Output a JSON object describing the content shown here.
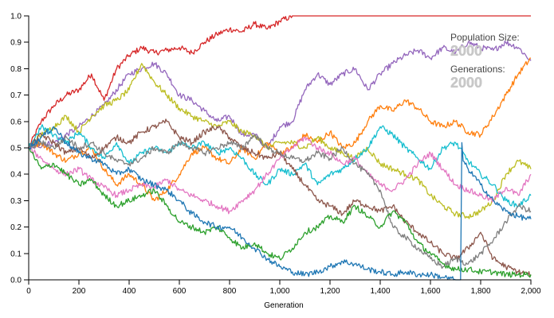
{
  "chart_data": {
    "type": "line",
    "title": "",
    "xlabel": "Generation",
    "ylabel": "",
    "xlim": [
      0,
      2000
    ],
    "ylim": [
      0,
      1
    ],
    "x_ticks": [
      0,
      200,
      400,
      600,
      800,
      1000,
      1200,
      1400,
      1600,
      1800,
      2000
    ],
    "x_tick_labels": [
      "0",
      "200",
      "400",
      "600",
      "800",
      "1,000",
      "1,200",
      "1,400",
      "1,600",
      "1,800",
      "2,000"
    ],
    "y_ticks": [
      0,
      0.1,
      0.2,
      0.3,
      0.4,
      0.5,
      0.6,
      0.7,
      0.8,
      0.9,
      1.0
    ],
    "y_tick_labels": [
      "0.0",
      "0.1",
      "0.2",
      "0.3",
      "0.4",
      "0.5",
      "0.6",
      "0.7",
      "0.8",
      "0.9",
      "1.0"
    ],
    "grid": false,
    "series": [
      {
        "color": "#d62728",
        "x": [
          0,
          50,
          100,
          150,
          200,
          250,
          300,
          350,
          400,
          450,
          500,
          550,
          600,
          650,
          700,
          750,
          800,
          850,
          900,
          950,
          1000,
          1050,
          1100,
          1500,
          2000
        ],
        "values": [
          0.5,
          0.6,
          0.66,
          0.7,
          0.72,
          0.78,
          0.68,
          0.8,
          0.85,
          0.88,
          0.86,
          0.87,
          0.88,
          0.86,
          0.9,
          0.93,
          0.95,
          0.94,
          0.97,
          0.95,
          0.98,
          1.0,
          1.0,
          1.0,
          1.0
        ]
      },
      {
        "color": "#9467bd",
        "x": [
          0,
          100,
          200,
          300,
          400,
          450,
          500,
          550,
          600,
          650,
          700,
          750,
          800,
          850,
          900,
          950,
          1000,
          1050,
          1100,
          1150,
          1200,
          1250,
          1300,
          1350,
          1400,
          1450,
          1500,
          1550,
          1600,
          1650,
          1700,
          1750,
          1800,
          1850,
          1900,
          1950,
          2000
        ],
        "values": [
          0.5,
          0.52,
          0.58,
          0.66,
          0.78,
          0.8,
          0.82,
          0.78,
          0.7,
          0.68,
          0.64,
          0.6,
          0.62,
          0.55,
          0.55,
          0.5,
          0.58,
          0.6,
          0.72,
          0.78,
          0.74,
          0.78,
          0.8,
          0.72,
          0.78,
          0.82,
          0.85,
          0.87,
          0.84,
          0.88,
          0.86,
          0.9,
          0.88,
          0.87,
          0.9,
          0.88,
          0.83
        ]
      },
      {
        "color": "#ff7f0e",
        "x": [
          0,
          50,
          100,
          150,
          200,
          250,
          300,
          350,
          400,
          450,
          500,
          550,
          600,
          650,
          700,
          750,
          800,
          850,
          900,
          950,
          1000,
          1050,
          1100,
          1150,
          1200,
          1250,
          1300,
          1350,
          1400,
          1450,
          1500,
          1550,
          1600,
          1650,
          1700,
          1750,
          1800,
          1850,
          1900,
          1950,
          2000
        ],
        "values": [
          0.5,
          0.52,
          0.48,
          0.45,
          0.48,
          0.5,
          0.42,
          0.36,
          0.4,
          0.36,
          0.3,
          0.34,
          0.4,
          0.48,
          0.5,
          0.46,
          0.44,
          0.5,
          0.46,
          0.52,
          0.48,
          0.5,
          0.55,
          0.52,
          0.56,
          0.5,
          0.52,
          0.6,
          0.66,
          0.64,
          0.68,
          0.65,
          0.6,
          0.58,
          0.6,
          0.56,
          0.55,
          0.62,
          0.7,
          0.78,
          0.84
        ]
      },
      {
        "color": "#bcbd22",
        "x": [
          0,
          50,
          100,
          150,
          200,
          250,
          300,
          350,
          400,
          450,
          500,
          550,
          600,
          650,
          700,
          750,
          800,
          850,
          900,
          950,
          1000,
          1050,
          1100,
          1150,
          1200,
          1250,
          1300,
          1350,
          1400,
          1450,
          1500,
          1550,
          1600,
          1650,
          1700,
          1750,
          1800,
          1850,
          1900,
          1950,
          2000
        ],
        "values": [
          0.5,
          0.55,
          0.58,
          0.62,
          0.56,
          0.62,
          0.66,
          0.68,
          0.72,
          0.82,
          0.75,
          0.7,
          0.65,
          0.62,
          0.6,
          0.58,
          0.6,
          0.56,
          0.55,
          0.5,
          0.52,
          0.52,
          0.5,
          0.54,
          0.5,
          0.48,
          0.46,
          0.5,
          0.44,
          0.42,
          0.4,
          0.38,
          0.32,
          0.28,
          0.25,
          0.24,
          0.26,
          0.3,
          0.4,
          0.45,
          0.42
        ]
      },
      {
        "color": "#17becf",
        "x": [
          0,
          50,
          100,
          150,
          200,
          250,
          300,
          350,
          400,
          450,
          500,
          550,
          600,
          650,
          700,
          750,
          800,
          850,
          900,
          950,
          1000,
          1050,
          1100,
          1150,
          1200,
          1250,
          1300,
          1350,
          1400,
          1450,
          1500,
          1550,
          1600,
          1650,
          1700,
          1750,
          1800,
          1850,
          1900,
          1950,
          2000
        ],
        "values": [
          0.5,
          0.58,
          0.55,
          0.52,
          0.56,
          0.5,
          0.46,
          0.52,
          0.44,
          0.48,
          0.5,
          0.48,
          0.52,
          0.5,
          0.52,
          0.48,
          0.5,
          0.46,
          0.4,
          0.36,
          0.42,
          0.4,
          0.44,
          0.36,
          0.4,
          0.42,
          0.46,
          0.5,
          0.58,
          0.55,
          0.5,
          0.46,
          0.42,
          0.5,
          0.52,
          0.45,
          0.4,
          0.36,
          0.3,
          0.28,
          0.32
        ]
      },
      {
        "color": "#8c564b",
        "x": [
          0,
          50,
          100,
          150,
          200,
          250,
          300,
          350,
          400,
          450,
          500,
          550,
          600,
          650,
          700,
          750,
          800,
          850,
          900,
          950,
          1000,
          1050,
          1100,
          1150,
          1200,
          1250,
          1300,
          1350,
          1400,
          1450,
          1500,
          1550,
          1600,
          1650,
          1700,
          1750,
          1800,
          1850,
          1900,
          1950,
          2000
        ],
        "values": [
          0.5,
          0.55,
          0.52,
          0.48,
          0.5,
          0.46,
          0.5,
          0.54,
          0.52,
          0.56,
          0.58,
          0.6,
          0.54,
          0.52,
          0.56,
          0.58,
          0.54,
          0.5,
          0.48,
          0.46,
          0.48,
          0.42,
          0.36,
          0.3,
          0.28,
          0.25,
          0.3,
          0.28,
          0.26,
          0.28,
          0.22,
          0.18,
          0.14,
          0.1,
          0.08,
          0.12,
          0.18,
          0.08,
          0.05,
          0.03,
          0.02
        ]
      },
      {
        "color": "#e377c2",
        "x": [
          0,
          50,
          100,
          150,
          200,
          250,
          300,
          350,
          400,
          450,
          500,
          550,
          600,
          650,
          700,
          750,
          800,
          850,
          900,
          950,
          1000,
          1050,
          1100,
          1150,
          1200,
          1250,
          1300,
          1350,
          1400,
          1450,
          1500,
          1550,
          1600,
          1650,
          1700,
          1750,
          1800,
          1850,
          1900,
          1950,
          2000
        ],
        "values": [
          0.5,
          0.46,
          0.42,
          0.4,
          0.42,
          0.38,
          0.35,
          0.32,
          0.34,
          0.36,
          0.35,
          0.38,
          0.34,
          0.32,
          0.3,
          0.28,
          0.26,
          0.3,
          0.34,
          0.4,
          0.46,
          0.5,
          0.54,
          0.5,
          0.48,
          0.44,
          0.46,
          0.4,
          0.36,
          0.34,
          0.38,
          0.44,
          0.48,
          0.42,
          0.36,
          0.34,
          0.32,
          0.3,
          0.35,
          0.32,
          0.4
        ]
      },
      {
        "color": "#7f7f7f",
        "x": [
          0,
          50,
          100,
          150,
          200,
          250,
          300,
          350,
          400,
          450,
          500,
          550,
          600,
          650,
          700,
          750,
          800,
          850,
          900,
          950,
          1000,
          1050,
          1100,
          1150,
          1200,
          1250,
          1300,
          1350,
          1400,
          1450,
          1500,
          1550,
          1600,
          1650,
          1700,
          1750,
          1800,
          1850,
          1900,
          1950,
          2000
        ],
        "values": [
          0.5,
          0.52,
          0.5,
          0.54,
          0.5,
          0.52,
          0.48,
          0.45,
          0.44,
          0.46,
          0.5,
          0.48,
          0.52,
          0.5,
          0.48,
          0.5,
          0.52,
          0.5,
          0.55,
          0.5,
          0.48,
          0.46,
          0.45,
          0.48,
          0.46,
          0.5,
          0.44,
          0.4,
          0.34,
          0.2,
          0.16,
          0.12,
          0.08,
          0.05,
          0.08,
          0.06,
          0.1,
          0.15,
          0.22,
          0.28,
          0.26
        ]
      },
      {
        "color": "#2ca02c",
        "x": [
          0,
          50,
          100,
          150,
          200,
          250,
          300,
          350,
          400,
          450,
          500,
          550,
          600,
          650,
          700,
          750,
          800,
          850,
          900,
          950,
          1000,
          1050,
          1100,
          1150,
          1200,
          1250,
          1300,
          1350,
          1400,
          1450,
          1500,
          1550,
          1600,
          1650,
          1700,
          1750,
          1800,
          1850,
          1900,
          1950,
          2000
        ],
        "values": [
          0.5,
          0.42,
          0.44,
          0.4,
          0.36,
          0.38,
          0.32,
          0.28,
          0.3,
          0.32,
          0.34,
          0.28,
          0.22,
          0.2,
          0.18,
          0.2,
          0.16,
          0.12,
          0.14,
          0.1,
          0.08,
          0.12,
          0.18,
          0.2,
          0.24,
          0.22,
          0.28,
          0.24,
          0.2,
          0.26,
          0.22,
          0.14,
          0.1,
          0.06,
          0.04,
          0.04,
          0.03,
          0.03,
          0.02,
          0.02,
          0.02
        ]
      },
      {
        "color": "#1f77b4",
        "x": [
          0,
          50,
          100,
          150,
          200,
          250,
          300,
          350,
          400,
          450,
          500,
          550,
          600,
          650,
          700,
          750,
          800,
          850,
          900,
          950,
          1000,
          1050,
          1100,
          1150,
          1200,
          1250,
          1300,
          1350,
          1400,
          1450,
          1500,
          1550,
          1600,
          1650,
          1700,
          1720,
          1725,
          1730,
          1750,
          1800,
          1850,
          1900,
          1950,
          2000
        ],
        "values": [
          0.5,
          0.54,
          0.58,
          0.52,
          0.48,
          0.46,
          0.44,
          0.4,
          0.42,
          0.38,
          0.36,
          0.34,
          0.3,
          0.25,
          0.22,
          0.2,
          0.2,
          0.16,
          0.12,
          0.08,
          0.05,
          0.03,
          0.02,
          0.03,
          0.05,
          0.07,
          0.06,
          0.04,
          0.03,
          0.02,
          0.03,
          0.02,
          0.02,
          0.01,
          0.0,
          0.0,
          0.52,
          0.45,
          0.42,
          0.36,
          0.3,
          0.26,
          0.24,
          0.23
        ]
      }
    ]
  },
  "info_panel": {
    "population_label": "Population Size:",
    "population_value": "2000",
    "generations_label": "Generations:",
    "generations_value": "2000"
  }
}
